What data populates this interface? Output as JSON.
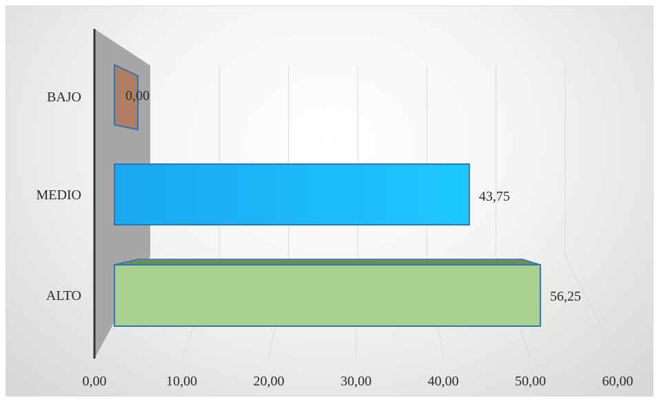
{
  "chart_data": {
    "type": "bar",
    "orientation": "horizontal",
    "categories": [
      "BAJO",
      "MEDIO",
      "ALTO"
    ],
    "values": [
      0.0,
      43.75,
      56.25
    ],
    "value_labels": [
      "0,00",
      "43,75",
      "56,25"
    ],
    "xlim": [
      0,
      60
    ],
    "xticks": [
      0,
      10,
      20,
      30,
      40,
      50,
      60
    ],
    "xtick_labels": [
      "0,00",
      "10,00",
      "20,00",
      "30,00",
      "40,00",
      "50,00",
      "60,00"
    ],
    "title": "",
    "xlabel": "",
    "ylabel": "",
    "grid": true,
    "legend": false,
    "perspective_3d": true,
    "colors": {
      "BAJO": "#b07f63",
      "MEDIO": "#1ec8ff",
      "ALTO": "#a9d18e",
      "bar_edge": "#2e75b6",
      "back_wall": "#a6a6a6",
      "axis": "#333333",
      "grid": "#d9d9d9"
    }
  }
}
